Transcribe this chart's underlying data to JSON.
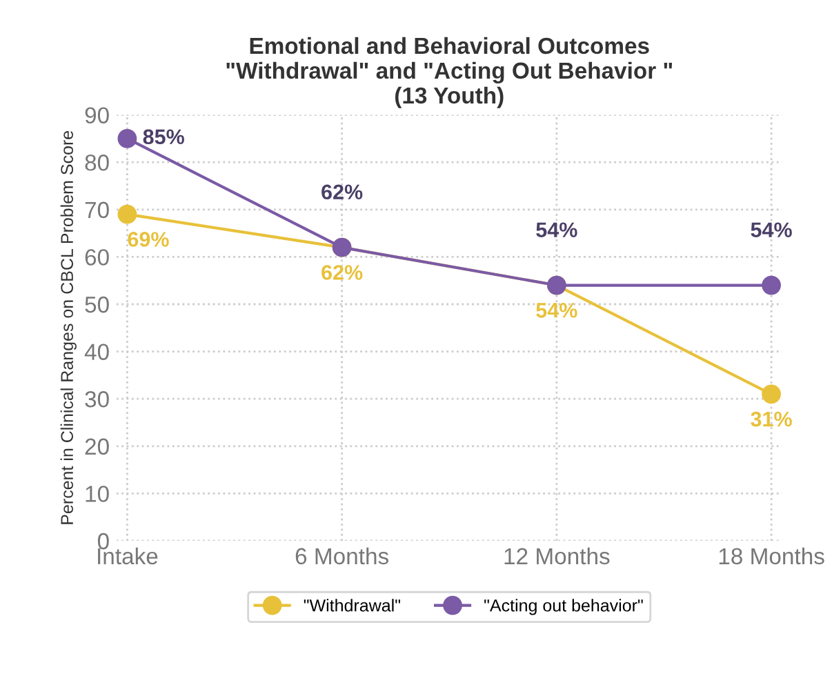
{
  "chart_data": {
    "type": "line",
    "title": "Emotional and Behavioral Outcomes\n\"Withdrawal\" and \"Acting Out Behavior \"\n(13 Youth)",
    "ylabel": "Percent in Clinical Ranges on CBCL Problem Score",
    "categories": [
      "Intake",
      "6 Months",
      "12 Months",
      "18 Months"
    ],
    "series": [
      {
        "name": "\"Withdrawal\"",
        "color": "#e8c13a",
        "values": [
          69,
          62,
          54,
          31
        ],
        "value_labels": [
          "69%",
          "62%",
          "54%",
          "31%"
        ]
      },
      {
        "name": "\"Acting out behavior\"",
        "color": "#7b5aa6",
        "values": [
          85,
          62,
          54,
          54
        ],
        "value_labels": [
          "85%",
          "62%",
          "54%",
          "54%"
        ]
      }
    ],
    "ylim": [
      0,
      90
    ],
    "yticks": [
      0,
      10,
      20,
      30,
      40,
      50,
      60,
      70,
      80,
      90
    ],
    "grid": true,
    "legend": "bottom",
    "marker": "circle",
    "line_style": "solid"
  }
}
